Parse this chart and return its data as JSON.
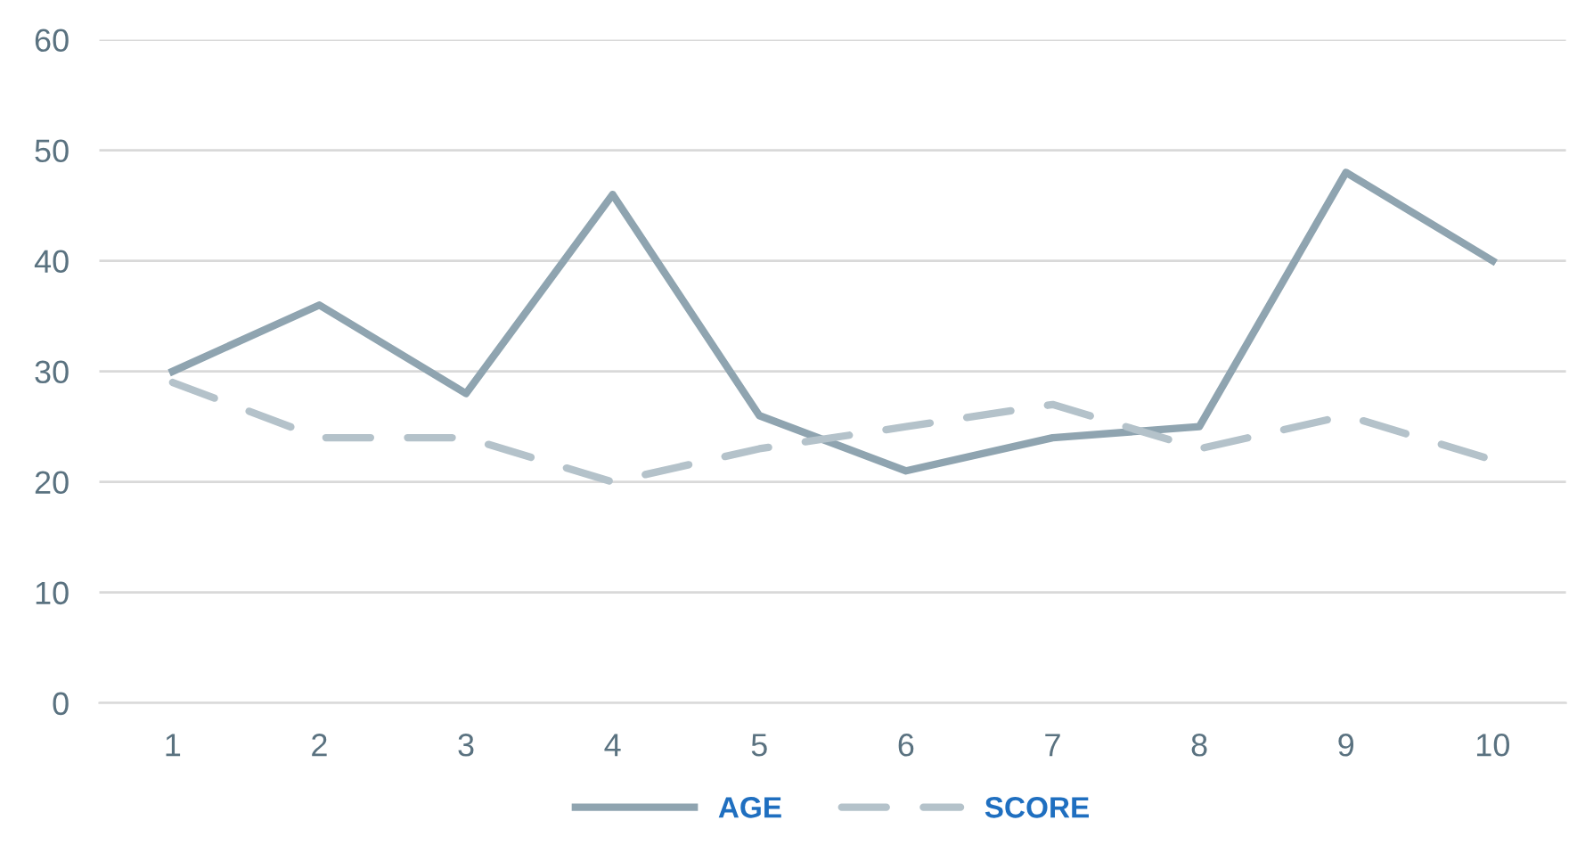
{
  "chart_data": {
    "type": "line",
    "categories": [
      "1",
      "2",
      "3",
      "4",
      "5",
      "6",
      "7",
      "8",
      "9",
      "10"
    ],
    "series": [
      {
        "name": "AGE",
        "color": "#8fa4b0",
        "values": [
          30,
          36,
          28,
          46,
          26,
          21,
          24,
          25,
          48,
          40
        ],
        "line_style": "solid"
      },
      {
        "name": "SCORE",
        "color": "#b4c2ca",
        "values": [
          29,
          24,
          24,
          20,
          23,
          25,
          27,
          23,
          26,
          22
        ],
        "line_style": "dashed"
      }
    ],
    "ylim": [
      0,
      60
    ],
    "yticks": [
      0,
      10,
      20,
      30,
      40,
      50,
      60
    ],
    "grid": "y",
    "legend": "bottom",
    "marker": "none"
  }
}
